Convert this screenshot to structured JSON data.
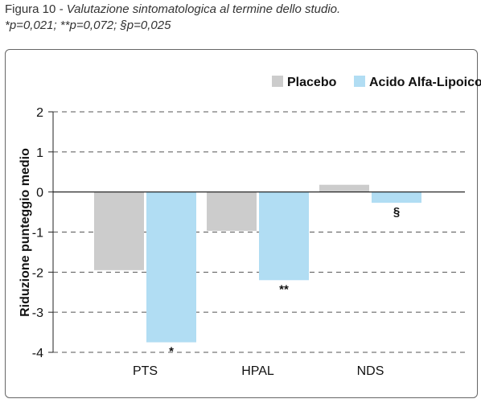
{
  "caption": {
    "label": "Figura 10",
    "separator": " - ",
    "title": "Valutazione sintomatologica al termine dello studio.",
    "notes": "*p=0,021; **p=0,072; §p=0,025"
  },
  "chart_data": {
    "type": "bar",
    "categories": [
      "PTS",
      "HPAL",
      "NDS"
    ],
    "series": [
      {
        "name": "Placebo",
        "color": "#cccccc",
        "values": [
          -1.95,
          -0.97,
          0.18
        ]
      },
      {
        "name": "Acido Alfa-Lipoico",
        "color": "#b1ddf3",
        "values": [
          -3.75,
          -2.2,
          -0.27
        ]
      }
    ],
    "annotations": [
      {
        "category": "PTS",
        "series": "Acido Alfa-Lipoico",
        "text": "*"
      },
      {
        "category": "HPAL",
        "series": "Acido Alfa-Lipoico",
        "text": "**"
      },
      {
        "category": "NDS",
        "series": "Acido Alfa-Lipoico",
        "text": "§"
      }
    ],
    "title": "",
    "xlabel": "",
    "ylabel": "Riduzione punteggio medio",
    "ylim": [
      -4,
      2
    ],
    "yticks": [
      2,
      1,
      0,
      -1,
      -2,
      -3,
      -4
    ],
    "grid": "dashed horizontal",
    "legend_position": "top-right"
  }
}
